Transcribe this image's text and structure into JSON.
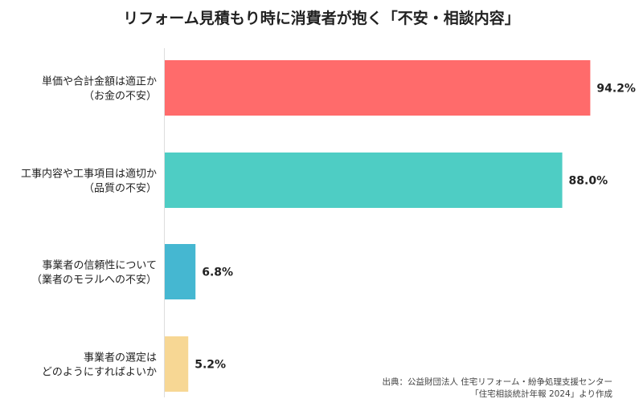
{
  "chart_data": {
    "type": "bar",
    "orientation": "horizontal",
    "title": "リフォーム見積もり時に消費者が抱く「不安・相談内容」",
    "categories": [
      [
        "単価や合計金額は適正か",
        "（お金の不安）"
      ],
      [
        "工事内容や工事項目は適切か",
        "（品質の不安）"
      ],
      [
        "事業者の信頼性について",
        "（業者のモラルへの不安）"
      ],
      [
        "事業者の選定は",
        "どのようにすればよいか"
      ]
    ],
    "values": [
      94.2,
      88.0,
      6.8,
      5.2
    ],
    "value_labels": [
      "94.2%",
      "88.0%",
      "6.8%",
      "5.2%"
    ],
    "colors": [
      "#FF6B6B",
      "#4ECDC4",
      "#45B7D1",
      "#F7D794"
    ],
    "xlim": [
      0,
      100
    ],
    "grid": false,
    "legend": "none"
  },
  "source": {
    "line1": "出典：公益財団法人 住宅リフォーム・紛争処理支援センター",
    "line2": "「住宅相談統計年報 2024」より作成"
  }
}
